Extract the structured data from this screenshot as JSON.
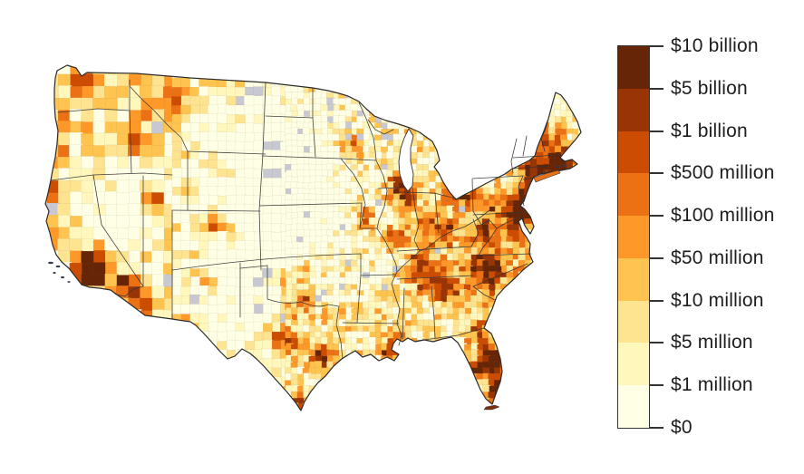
{
  "figure": {
    "kind": "US county-level choropleth map",
    "background_color": "#ffffff"
  },
  "legend": {
    "tick_labels": [
      "$10 billion",
      "$5 billion",
      "$1 billion",
      "$500 million",
      "$100 million",
      "$50 million",
      "$10 million",
      "$5 million",
      "$1 million",
      "$0"
    ],
    "band_colors_top_to_bottom": [
      "#662506",
      "#993404",
      "#cc4c02",
      "#ec7014",
      "#fe9929",
      "#fec44f",
      "#fee391",
      "#fff7bc",
      "#ffffe5"
    ],
    "tick_color": "#333333",
    "label_color": "#1d1d1d"
  },
  "chart_data": {
    "type": "choropleth",
    "geography": "United States counties (contiguous 48 states)",
    "scale_kind": "threshold (dollar amounts)",
    "thresholds_top_to_bottom": [
      "$10 billion",
      "$5 billion",
      "$1 billion",
      "$500 million",
      "$100 million",
      "$50 million",
      "$10 million",
      "$5 million",
      "$1 million",
      "$0"
    ],
    "band_colors_top_to_bottom": [
      "#662506",
      "#993404",
      "#cc4c02",
      "#ec7014",
      "#fe9929",
      "#fec44f",
      "#fee391",
      "#fff7bc",
      "#ffffe5"
    ],
    "no_data_color": "#c8c8d2",
    "state_border_color": "#333333",
    "lakes_color": "#ffffff",
    "legend_position": "right"
  }
}
